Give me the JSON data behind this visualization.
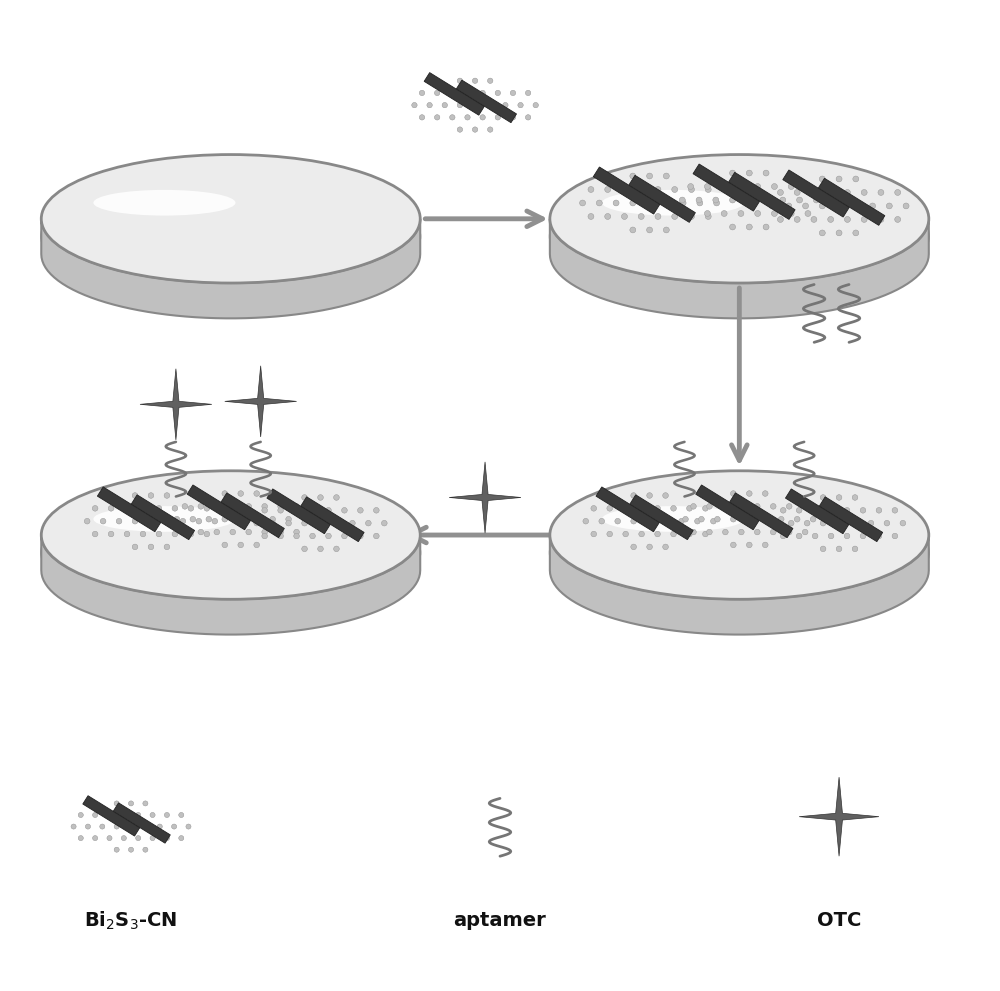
{
  "bg_color": "#ffffff",
  "arrow_color": "#909090",
  "dark_rod_color": "#3a3a3a",
  "mesh_color": "#aaaaaa",
  "mesh_outline": "#888888",
  "star_color": "#606060",
  "wavy_color": "#757575",
  "label_color": "#111111",
  "electrode_top_color": "#f0f0f0",
  "electrode_side_color": "#aaaaaa",
  "electrode_edge_color": "#888888",
  "electrode_shine_color": "#ffffff",
  "bi2s3_cn_label": "Bi$_2$S$_3$-CN",
  "aptamer_label": "aptamer",
  "otc_label": "OTC",
  "e1": [
    0.23,
    0.78
  ],
  "e2": [
    0.74,
    0.78
  ],
  "e3": [
    0.74,
    0.46
  ],
  "e4": [
    0.23,
    0.46
  ],
  "erx": 0.19,
  "ery": 0.065
}
